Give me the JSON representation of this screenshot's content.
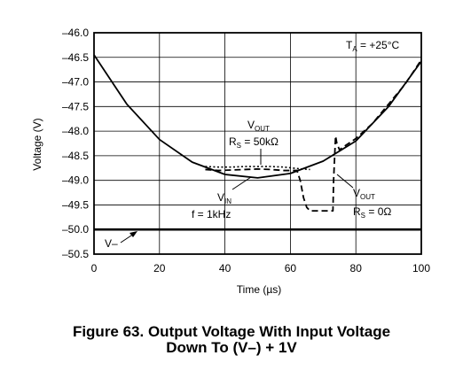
{
  "chart_data": {
    "type": "line",
    "ylabel": "Voltage (V)",
    "xlabel": "Time (µs)",
    "xlim": [
      0,
      100
    ],
    "ylim": [
      -50.5,
      -46.0
    ],
    "xticks": [
      "0",
      "20",
      "40",
      "60",
      "80",
      "100"
    ],
    "yticks": [
      "-46.0",
      "-46.5",
      "-47.0",
      "-47.5",
      "-48.0",
      "-48.5",
      "-49.0",
      "-49.5",
      "-50.0",
      "-50.5"
    ],
    "grid": true,
    "series": [
      {
        "name": "V–",
        "style": "solid-thick",
        "x": [
          0,
          100
        ],
        "y": [
          -50.0,
          -50.0
        ]
      },
      {
        "name": "V_IN",
        "style": "solid",
        "x": [
          0,
          10,
          20,
          30,
          40,
          50,
          60,
          70,
          80,
          90,
          100
        ],
        "y": [
          -46.45,
          -47.45,
          -48.17,
          -48.63,
          -48.88,
          -48.95,
          -48.86,
          -48.61,
          -48.2,
          -47.5,
          -46.58
        ]
      },
      {
        "name": "V_OUT (R_S = 50kΩ)",
        "style": "dotted",
        "x": [
          34,
          38,
          42,
          46,
          50,
          54,
          58,
          62,
          66
        ],
        "y": [
          -48.72,
          -48.73,
          -48.73,
          -48.72,
          -48.72,
          -48.72,
          -48.73,
          -48.76,
          -48.78
        ]
      },
      {
        "name": "V_OUT (R_S = 0Ω)",
        "style": "dashed",
        "x": [
          34,
          38,
          42,
          46,
          50,
          54,
          58,
          62,
          63,
          64,
          65,
          66,
          68,
          70,
          72,
          73,
          73.2,
          73.8,
          74.2,
          75,
          76,
          80,
          85,
          90,
          95,
          100
        ],
        "y": [
          -48.78,
          -48.8,
          -48.79,
          -48.78,
          -48.77,
          -48.78,
          -48.8,
          -48.8,
          -49.0,
          -49.35,
          -49.55,
          -49.62,
          -49.62,
          -49.62,
          -49.62,
          -49.62,
          -49.0,
          -48.1,
          -48.25,
          -48.38,
          -48.33,
          -48.15,
          -47.85,
          -47.45,
          -47.05,
          -46.55
        ]
      }
    ],
    "annotations": {
      "ta": {
        "t": "T",
        "sub": "A",
        "rest": " = +25°C"
      },
      "vout_50k": {
        "line1_main": "V",
        "line1_sub": "OUT",
        "line2_main": "R",
        "line2_sub": "S",
        "line2_rest": " = 50kΩ"
      },
      "vin": {
        "line1_main": "V",
        "line1_sub": "IN",
        "line2": "f = 1kHz"
      },
      "vout_0": {
        "line1_main": "V",
        "line1_sub": "OUT",
        "line2_main": "R",
        "line2_sub": "S",
        "line2_rest": " = 0Ω"
      },
      "vminus": "V–"
    }
  },
  "caption": {
    "line1": "Figure 63. Output Voltage With Input Voltage",
    "line2": "Down To (V–) + 1V"
  }
}
